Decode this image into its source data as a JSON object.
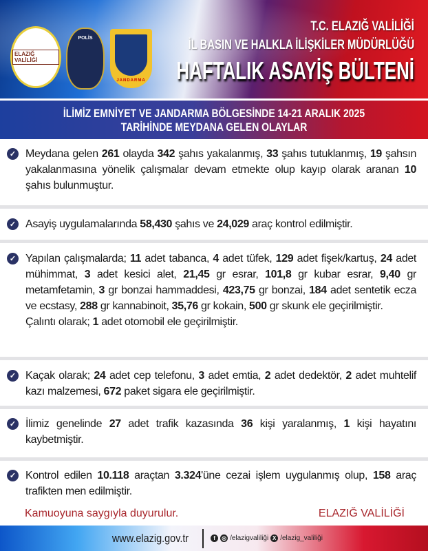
{
  "header": {
    "logo_valilik_text": "ELAZIĞ VALİLİĞİ",
    "logo_polis_text": "POLİS",
    "logo_jandarma_text": "JANDARMA",
    "line1": "T.C. ELAZIĞ VALİLİĞİ",
    "line2": "İL BASIN VE HALKLA İLİŞKİLER MÜDÜRLÜĞÜ",
    "title": "HAFTALIK ASAYİŞ BÜLTENİ"
  },
  "subtitle": {
    "line1": "İLİMİZ EMNİYET VE JANDARMA BÖLGESİNDE 14-21 ARALIK 2025",
    "line2": "TARİHİNDE MEYDANA GELEN OLAYLAR"
  },
  "items": [
    [
      [
        "Meydana gelen ",
        0
      ],
      [
        "261",
        1
      ],
      [
        " olayda ",
        0
      ],
      [
        "342",
        1
      ],
      [
        " şahıs yakalanmış, ",
        0
      ],
      [
        "33",
        1
      ],
      [
        " şahıs tutuklanmış, ",
        0
      ],
      [
        "19",
        1
      ],
      [
        " şahsın yakalanmasına yönelik çalışmalar devam etmekte olup kayıp olarak aranan ",
        0
      ],
      [
        "10",
        1
      ],
      [
        " şahıs bulunmuştur.",
        0
      ]
    ],
    [
      [
        "Asayiş uygulamalarında ",
        0
      ],
      [
        "58,430",
        1
      ],
      [
        " şahıs ve ",
        0
      ],
      [
        "24,029",
        1
      ],
      [
        " araç kontrol edilmiştir.",
        0
      ]
    ],
    [
      [
        "Yapılan çalışmalarda; ",
        0
      ],
      [
        "11",
        1
      ],
      [
        " adet tabanca, ",
        0
      ],
      [
        "4",
        1
      ],
      [
        " adet tüfek, ",
        0
      ],
      [
        "129",
        1
      ],
      [
        " adet fişek/kartuş, ",
        0
      ],
      [
        "24",
        1
      ],
      [
        " adet mühimmat, ",
        0
      ],
      [
        "3",
        1
      ],
      [
        " adet kesici alet, ",
        0
      ],
      [
        "21,45",
        1
      ],
      [
        " gr esrar, ",
        0
      ],
      [
        "101,8",
        1
      ],
      [
        " gr kubar esrar, ",
        0
      ],
      [
        "9,40",
        1
      ],
      [
        " gr metamfetamin, ",
        0
      ],
      [
        "3",
        1
      ],
      [
        " gr bonzai hammaddesi, ",
        0
      ],
      [
        "423,75",
        1
      ],
      [
        " gr bonzai, ",
        0
      ],
      [
        "184",
        1
      ],
      [
        " adet sentetik ecza ve ecstasy, ",
        0
      ],
      [
        "288",
        1
      ],
      [
        " gr kannabinoit, ",
        0
      ],
      [
        "35,76",
        1
      ],
      [
        " gr kokain, ",
        0
      ],
      [
        "500",
        1
      ],
      [
        " gr skunk ele geçirilmiştir.",
        0
      ],
      [
        "\nÇalıntı olarak; ",
        0
      ],
      [
        "1",
        1
      ],
      [
        " adet otomobil ele geçirilmiştir.",
        0
      ]
    ],
    [
      [
        "Kaçak olarak; ",
        0
      ],
      [
        "24",
        1
      ],
      [
        " adet cep telefonu, ",
        0
      ],
      [
        "3",
        1
      ],
      [
        " adet emtia, ",
        0
      ],
      [
        "2",
        1
      ],
      [
        " adet dedektör, ",
        0
      ],
      [
        "2",
        1
      ],
      [
        " adet muhtelif kazı malzemesi, ",
        0
      ],
      [
        "672",
        1
      ],
      [
        " paket sigara ele geçirilmiştir.",
        0
      ]
    ],
    [
      [
        "İlimiz genelinde ",
        0
      ],
      [
        "27",
        1
      ],
      [
        " adet trafik kazasında ",
        0
      ],
      [
        "36",
        1
      ],
      [
        " kişi yaralanmış, ",
        0
      ],
      [
        "1",
        1
      ],
      [
        " kişi hayatını kaybetmiştir.",
        0
      ]
    ],
    [
      [
        "Kontrol edilen ",
        0
      ],
      [
        "10.118",
        1
      ],
      [
        " araçtan ",
        0
      ],
      [
        "3.324",
        1
      ],
      [
        "'üne cezai işlem uygulanmış olup, ",
        0
      ],
      [
        "158",
        1
      ],
      [
        " araç trafikten men edilmiştir.",
        0
      ]
    ]
  ],
  "closing": {
    "left": "Kamuoyuna saygıyla duyurulur.",
    "right": "ELAZIĞ VALİLİĞİ"
  },
  "footer": {
    "website": "www.elazig.gov.tr",
    "facebook_instagram": "/elazigvaliliği",
    "x": "/elazig_valiliği"
  },
  "colors": {
    "check": "#2a3265",
    "closing": "#a8262c",
    "blue": "#1d3f9e",
    "red": "#d3141f"
  }
}
